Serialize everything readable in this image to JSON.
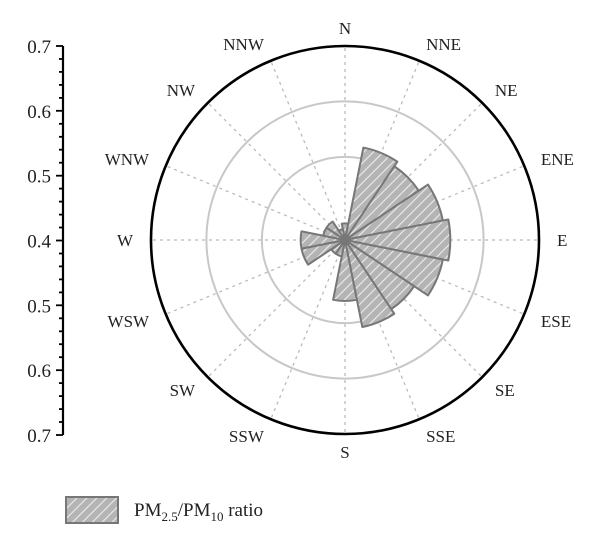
{
  "chart_data": {
    "type": "polar-rose",
    "directions": [
      "N",
      "NNE",
      "NE",
      "ENE",
      "E",
      "ESE",
      "SE",
      "SSE",
      "S",
      "SSW",
      "SW",
      "WSW",
      "W",
      "WNW",
      "NW",
      "NNW"
    ],
    "y_axis_ticks": [
      "0.7",
      "0.6",
      "0.5",
      "0.4",
      "0.5",
      "0.6",
      "0.7"
    ],
    "rlim": [
      0.35,
      0.7
    ],
    "ring_values": [
      0.5,
      0.6
    ],
    "series": [
      {
        "name": "PM2.5/PM10 ratio",
        "legend_parts": {
          "prefix": "PM",
          "sub1": "2.5",
          "mid": "/PM",
          "sub2": "10",
          "suffix": " ratio"
        },
        "values": [
          0.38,
          0.52,
          0.51,
          0.53,
          0.54,
          0.53,
          0.5,
          0.51,
          0.46,
          0.38,
          0.38,
          0.43,
          0.43,
          0.39,
          0.39,
          0.37
        ]
      }
    ],
    "grid": true,
    "legend": "bottom-left"
  },
  "colors": {
    "bar_fill": "#b4b4b4",
    "bar_stroke": "#777777",
    "hatch": "#ececec",
    "ring": "#c8c8c8",
    "spoke": "#bbbbbb",
    "frame": "#000000"
  }
}
